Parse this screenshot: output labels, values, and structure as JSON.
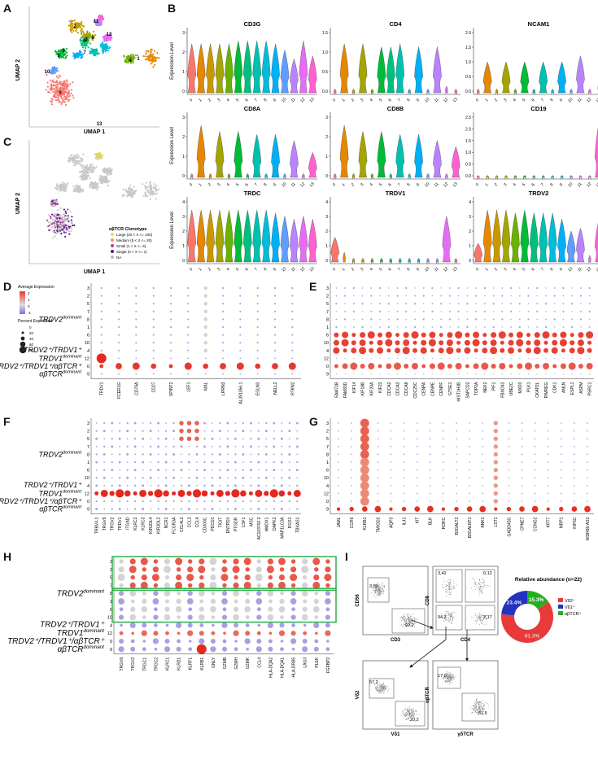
{
  "panels": {
    "A": "A",
    "B": "B",
    "C": "C",
    "D": "D",
    "E": "E",
    "F": "F",
    "G": "G",
    "H": "H",
    "I": "I"
  },
  "umap": {
    "x_label": "UMAP 1",
    "y_label": "UMAP 2",
    "cluster_labels": [
      "0",
      "1",
      "2",
      "3",
      "4",
      "5",
      "6",
      "7",
      "8",
      "9",
      "10",
      "11",
      "12",
      "13"
    ],
    "cluster_colors": [
      "#f8766d",
      "#e58700",
      "#c99800",
      "#a3a500",
      "#6bb100",
      "#00ba38",
      "#00bf7d",
      "#00c0af",
      "#00bcd8",
      "#00b0f6",
      "#619cff",
      "#b983ff",
      "#e76bf3",
      "#fd61d1"
    ]
  },
  "clonotype_legend": {
    "title": "αβTCR Clonotype",
    "items": [
      {
        "label": "Large (20 < X <= 100)",
        "color": "#f2e600"
      },
      {
        "label": "Medium (5 < X <= 20)",
        "color": "#e8a23c"
      },
      {
        "label": "Small (1 < X <= 5)",
        "color": "#c0399f"
      },
      {
        "label": "Single (0 < X <= 1)",
        "color": "#5a1a8a"
      },
      {
        "label": "NA",
        "color": "#bbbbbb"
      }
    ]
  },
  "violin": {
    "y_label": "Expression Level",
    "x_ticks": [
      "0",
      "1",
      "2",
      "3",
      "4",
      "5",
      "6",
      "7",
      "8",
      "9",
      "10",
      "11",
      "12",
      "13"
    ],
    "genes": [
      "CD3G",
      "CD4",
      "NCAM1",
      "CD8A",
      "CD8B",
      "CD19",
      "TRDC",
      "TRDV1",
      "TRDV2"
    ],
    "heights": {
      "CD3G": [
        0.8,
        0.8,
        0.8,
        0.8,
        0.8,
        0.85,
        0.85,
        0.85,
        0.85,
        0.8,
        0.7,
        0.55,
        0.85,
        0.6
      ],
      "CD4": [
        0.05,
        0.8,
        0.05,
        0.8,
        0.05,
        0.75,
        0.75,
        0.8,
        0.05,
        0.75,
        0.05,
        0.75,
        0.1,
        0.05
      ],
      "NCAM1": [
        0.05,
        0.5,
        0.05,
        0.5,
        0.05,
        0.5,
        0.05,
        0.5,
        0.05,
        0.5,
        0.05,
        0.6,
        0.05,
        0.2
      ],
      "CD8A": [
        0.05,
        0.85,
        0.05,
        0.75,
        0.05,
        0.75,
        0.05,
        0.7,
        0.05,
        0.7,
        0.05,
        0.6,
        0.05,
        0.4
      ],
      "CD8B": [
        0.05,
        0.85,
        0.05,
        0.75,
        0.05,
        0.75,
        0.05,
        0.7,
        0.05,
        0.7,
        0.05,
        0.6,
        0.05,
        0.5
      ],
      "CD19": [
        0.02,
        0.02,
        0.02,
        0.02,
        0.02,
        0.02,
        0.02,
        0.02,
        0.02,
        0.02,
        0.02,
        0.02,
        0.02,
        0.9
      ],
      "TRDC": [
        0.85,
        0.85,
        0.85,
        0.85,
        0.85,
        0.85,
        0.85,
        0.85,
        0.85,
        0.8,
        0.75,
        0.7,
        0.75,
        0.7
      ],
      "TRDV1": [
        0.4,
        0.15,
        0.05,
        0.05,
        0.05,
        0.05,
        0.05,
        0.05,
        0.05,
        0.05,
        0.05,
        0.05,
        0.75,
        0.05
      ],
      "TRDV2": [
        0.3,
        0.85,
        0.85,
        0.85,
        0.8,
        0.85,
        0.8,
        0.8,
        0.8,
        0.7,
        0.5,
        0.55,
        0.1,
        0.7
      ]
    },
    "yticks": {
      "CD3G": [
        "0",
        "1",
        "2",
        "3"
      ],
      "CD4": [
        "0.0",
        "0.5",
        "1.0",
        "1.5"
      ],
      "NCAM1": [
        "0.0",
        "0.5",
        "1.0",
        "1.5",
        "2.0"
      ],
      "CD8A": [
        "0",
        "1",
        "2",
        "3"
      ],
      "CD8B": [
        "0",
        "1",
        "2",
        "3"
      ],
      "CD19": [
        "0.0",
        "0.5",
        "1.0",
        "1.5",
        "2.0",
        "2.5"
      ],
      "TRDC": [
        "0",
        "1",
        "2",
        "3",
        "4"
      ],
      "TRDV1": [
        "0",
        "1",
        "2",
        "3",
        "4"
      ],
      "TRDV2": [
        "0",
        "1",
        "2",
        "3",
        "4"
      ]
    }
  },
  "dot_rows": [
    "3",
    "2",
    "5",
    "7",
    "8",
    "1",
    "6",
    "10",
    "4",
    "12",
    "0",
    "9"
  ],
  "dot_legend": {
    "avg_title": "Average Expression",
    "avg_ticks": [
      "2",
      "1",
      "0",
      "-1"
    ],
    "pct_title": "Percent Expressed",
    "pct_ticks": [
      "0",
      "20",
      "40",
      "60",
      "80"
    ]
  },
  "group_labels": {
    "trdv2_dom": "TRDV2",
    "dominant": "dominant",
    "trdv2_trdv1": "TRDV2⁺/TRDV1⁺",
    "trdv1_dom": "TRDV1",
    "trdv2_trdv1_ab": "TRDV2⁺/TRDV1⁺/αβTCR⁺",
    "ab_dom": "αβTCR"
  },
  "dot_genes": {
    "D": [
      "TRDV1",
      "FCER1G",
      "CD79A",
      "CD27",
      "SPINT2",
      "LEF1",
      "MAL",
      "LRRN3",
      "AL391056.1",
      "EGLN3",
      "NELL2",
      "RTKN2"
    ],
    "E": [
      "FAM72B",
      "FAM83D",
      "KIF14",
      "KIF18B",
      "KIF20A",
      "KIF23",
      "CDCA2",
      "CDCA3",
      "CDCA8",
      "CDC25C",
      "CENPA",
      "CENPE",
      "CENPF",
      "GTSE1",
      "HIST1H3B",
      "SAPCD2",
      "TOP2A",
      "NEK2",
      "PIF1",
      "FBXO43",
      "UBE2C",
      "MXD3",
      "PLK1",
      "CKAP2L",
      "PIMREG",
      "CDK1",
      "ANLN",
      "ESPL1",
      "ASPM",
      "PSRC1"
    ],
    "F": [
      "TRBV4-1",
      "TRGV9",
      "TRGV2",
      "TRDV1",
      "ITGAD",
      "KLRC2",
      "KLRC3",
      "KIR2DL4",
      "KIR3DL2",
      "NCR1",
      "FCGR3A",
      "CCL4L2",
      "CCL3",
      "CCL4",
      "CD300C",
      "PDCD1",
      "TIGIT",
      "ENTPD1",
      "PTGDR",
      "CSF1",
      "MSC",
      "AC103702.2",
      "HMOX1",
      "DAPK2",
      "MAP1LC3A",
      "RGS1",
      "TBXAS1"
    ],
    "G": [
      "JAML",
      "CCR6",
      "KLRB1",
      "TMIGD2",
      "AQP3",
      "IL41",
      "KIT",
      "BLK",
      "RORC",
      "B3GALT2",
      "B3GALNT1",
      "ANK1",
      "LST1",
      "GADD45G",
      "CPNE7",
      "CCNG2",
      "KRT7",
      "NRP1",
      "KIF5C",
      "WDR86-AS1"
    ],
    "H": [
      "TRGV9",
      "TRGV2",
      "TRGC1",
      "TRGC2",
      "KLRC1",
      "KLRD1",
      "KLRF1",
      "KLRB1",
      "GNLY",
      "GZMB",
      "GZMH",
      "GZMK",
      "CCL4",
      "HLA-DQA2",
      "HLA-DQA1",
      "HLA-DRB5",
      "LAG3",
      "PLEK",
      "FGFBP2"
    ]
  },
  "flow": {
    "plots": [
      {
        "x": "CD3",
        "y": "CD56",
        "gates": [
          "3,50",
          "92,2"
        ]
      },
      {
        "x": "CD4",
        "y": "CD8",
        "gates": [
          "3,42",
          "0,12",
          "94,3",
          "2,17"
        ]
      },
      {
        "x": "Vδ1",
        "y": "Vδ2",
        "gates": [
          "57,2",
          "20,2"
        ]
      },
      {
        "x": "γδTCR",
        "y": "αβTCR",
        "gates": [
          "17,0",
          "81,5"
        ]
      }
    ]
  },
  "donut": {
    "title": "Relative abundance (n=22)",
    "segments": [
      {
        "label": "Vδ2⁺",
        "value": 61.3,
        "text": "61.3%",
        "color": "#e83a3a"
      },
      {
        "label": "Vδ1⁺",
        "value": 23.4,
        "text": "23.4%",
        "color": "#2233c0"
      },
      {
        "label": "αβTCR⁺",
        "value": 15.3,
        "text": "15.3%",
        "color": "#22b022"
      }
    ]
  }
}
